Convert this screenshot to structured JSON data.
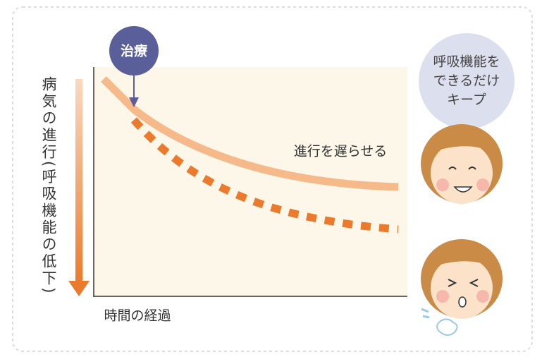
{
  "treatment": "治療",
  "bubble": {
    "lines": [
      "呼吸機能を",
      "できるだけ",
      "キープ"
    ]
  },
  "curve_label": "進行を遅らせる",
  "y_axis_label": "病気の進行(呼吸機能の低下)",
  "x_axis_label": "時間の経過"
}
